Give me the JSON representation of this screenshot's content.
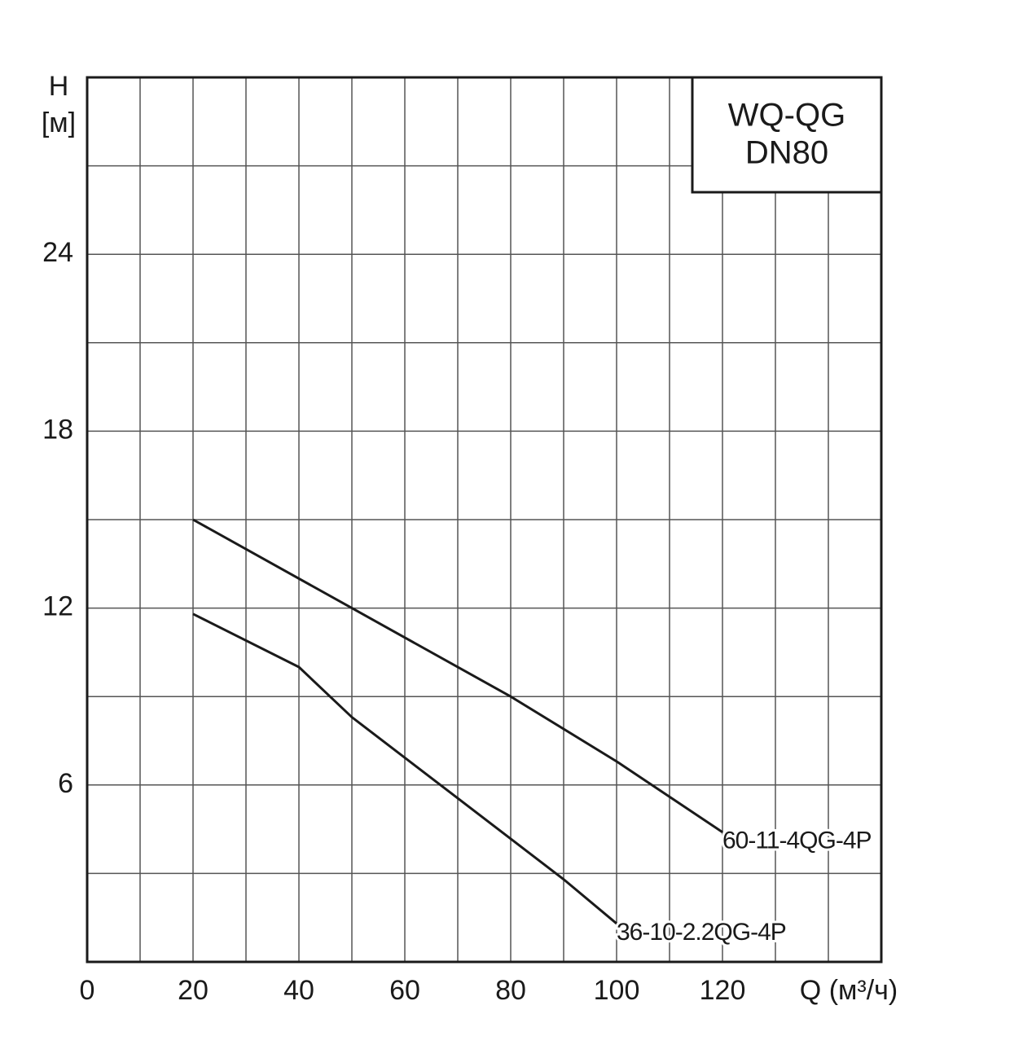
{
  "chart_data": {
    "type": "line",
    "title": [
      "WQ-QG",
      "DN80"
    ],
    "ylabel": [
      "H",
      "[м]"
    ],
    "xlabel": "Q (м³/ч)",
    "xlim": [
      0,
      150
    ],
    "ylim": [
      0,
      30
    ],
    "xticks": [
      0,
      20,
      40,
      60,
      80,
      100,
      120
    ],
    "yticks": [
      6,
      12,
      18,
      24
    ],
    "minor_xticks": [
      10,
      30,
      50,
      70,
      90,
      110,
      130,
      140
    ],
    "minor_yticks": [
      3,
      9,
      15,
      21,
      27
    ],
    "grid": true,
    "series": [
      {
        "name": "60-11-4QG-4P",
        "color": "#1a1a1a",
        "x": [
          20,
          50,
          80,
          100,
          120
        ],
        "values": [
          15,
          12,
          9,
          6.8,
          4.4
        ]
      },
      {
        "name": "36-10-2.2QG-4P",
        "color": "#1a1a1a",
        "x": [
          20,
          40,
          50,
          70,
          90,
          100
        ],
        "values": [
          11.8,
          10,
          8.3,
          5.55,
          2.8,
          1.3
        ]
      }
    ]
  }
}
